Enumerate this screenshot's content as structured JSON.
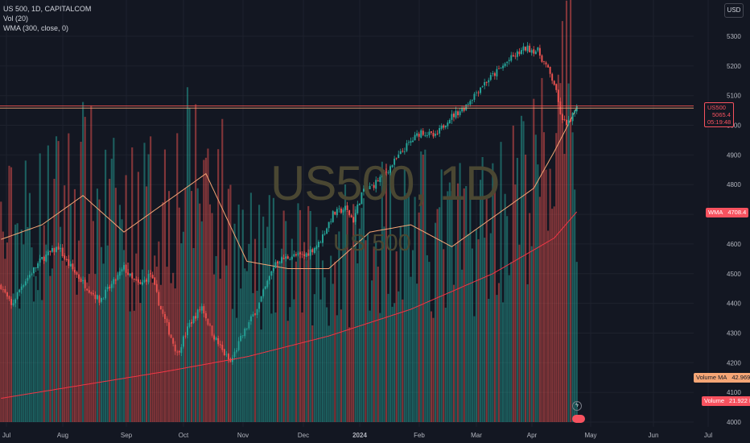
{
  "legend": {
    "symbol_line": "US 500, 1D, CAPITALCOM",
    "vol_line": "Vol (20)",
    "wma_line": "WMA (300, close, 0)"
  },
  "currency": "USD",
  "watermark": {
    "main": "US500, 1D",
    "sub": "US 500"
  },
  "tags": {
    "price_symbol": "US500",
    "price_value": "5065.4",
    "countdown": "05:19:48",
    "wma_label": "WMA",
    "wma_value": "4708.4",
    "volma_label": "Volume MA",
    "volma_value": "42.969 K",
    "vol_label": "Volume",
    "vol_value": "21.922 K"
  },
  "colors": {
    "background": "#131722",
    "up": "#26a69a",
    "down": "#ef5350",
    "wma": "#f23645",
    "volume_ma": "#f5a676",
    "grid": "#1e222d",
    "axis_text": "#b2b5be"
  },
  "chart_data": {
    "type": "candlestick",
    "y_ticks": [
      5300,
      5200,
      5100,
      5000,
      4900,
      4800,
      4700,
      4600,
      4500,
      4400,
      4300,
      4200,
      4100,
      4000
    ],
    "x_ticks": [
      "Jul",
      "Aug",
      "Sep",
      "Oct",
      "Nov",
      "Dec",
      "2024",
      "Feb",
      "Mar",
      "Apr",
      "May",
      "Jun",
      "Jul"
    ],
    "last_price": 5065.4,
    "waypoints": [
      [
        0,
        4460
      ],
      [
        5,
        4390
      ],
      [
        10,
        4460
      ],
      [
        20,
        4550
      ],
      [
        28,
        4590
      ],
      [
        32,
        4540
      ],
      [
        40,
        4470
      ],
      [
        48,
        4410
      ],
      [
        55,
        4470
      ],
      [
        60,
        4520
      ],
      [
        64,
        4480
      ],
      [
        68,
        4460
      ],
      [
        73,
        4500
      ],
      [
        78,
        4380
      ],
      [
        86,
        4230
      ],
      [
        92,
        4330
      ],
      [
        98,
        4390
      ],
      [
        103,
        4300
      ],
      [
        108,
        4240
      ],
      [
        112,
        4200
      ],
      [
        117,
        4280
      ],
      [
        126,
        4400
      ],
      [
        134,
        4540
      ],
      [
        142,
        4560
      ],
      [
        148,
        4560
      ],
      [
        155,
        4600
      ],
      [
        162,
        4700
      ],
      [
        168,
        4720
      ],
      [
        172,
        4680
      ],
      [
        176,
        4770
      ],
      [
        182,
        4800
      ],
      [
        190,
        4860
      ],
      [
        198,
        4930
      ],
      [
        205,
        4980
      ],
      [
        212,
        4960
      ],
      [
        218,
        5020
      ],
      [
        226,
        5060
      ],
      [
        234,
        5130
      ],
      [
        242,
        5180
      ],
      [
        248,
        5220
      ],
      [
        256,
        5260
      ],
      [
        262,
        5250
      ],
      [
        266,
        5200
      ],
      [
        270,
        5140
      ],
      [
        274,
        5010
      ],
      [
        278,
        5010
      ],
      [
        281,
        5070
      ]
    ],
    "wma_points": [
      [
        0,
        4080
      ],
      [
        40,
        4125
      ],
      [
        80,
        4170
      ],
      [
        120,
        4220
      ],
      [
        160,
        4290
      ],
      [
        200,
        4380
      ],
      [
        240,
        4500
      ],
      [
        270,
        4620
      ],
      [
        281,
        4708.4
      ]
    ],
    "volume_ma_points": [
      [
        0,
        25
      ],
      [
        20,
        27
      ],
      [
        40,
        31
      ],
      [
        60,
        26
      ],
      [
        80,
        30
      ],
      [
        100,
        34
      ],
      [
        120,
        22
      ],
      [
        140,
        21
      ],
      [
        160,
        21
      ],
      [
        180,
        26
      ],
      [
        200,
        27
      ],
      [
        220,
        24
      ],
      [
        240,
        28
      ],
      [
        260,
        32
      ],
      [
        270,
        37
      ],
      [
        281,
        43
      ]
    ],
    "volume_spikes": {
      "272": 1.0,
      "270": 0.58,
      "268": 0.42,
      "266": 0.47,
      "264": 0.5,
      "276": 0.22,
      "277": 0.2,
      "240": 0.38,
      "233": 0.32,
      "150": 0.22,
      "104": 0.42
    }
  }
}
